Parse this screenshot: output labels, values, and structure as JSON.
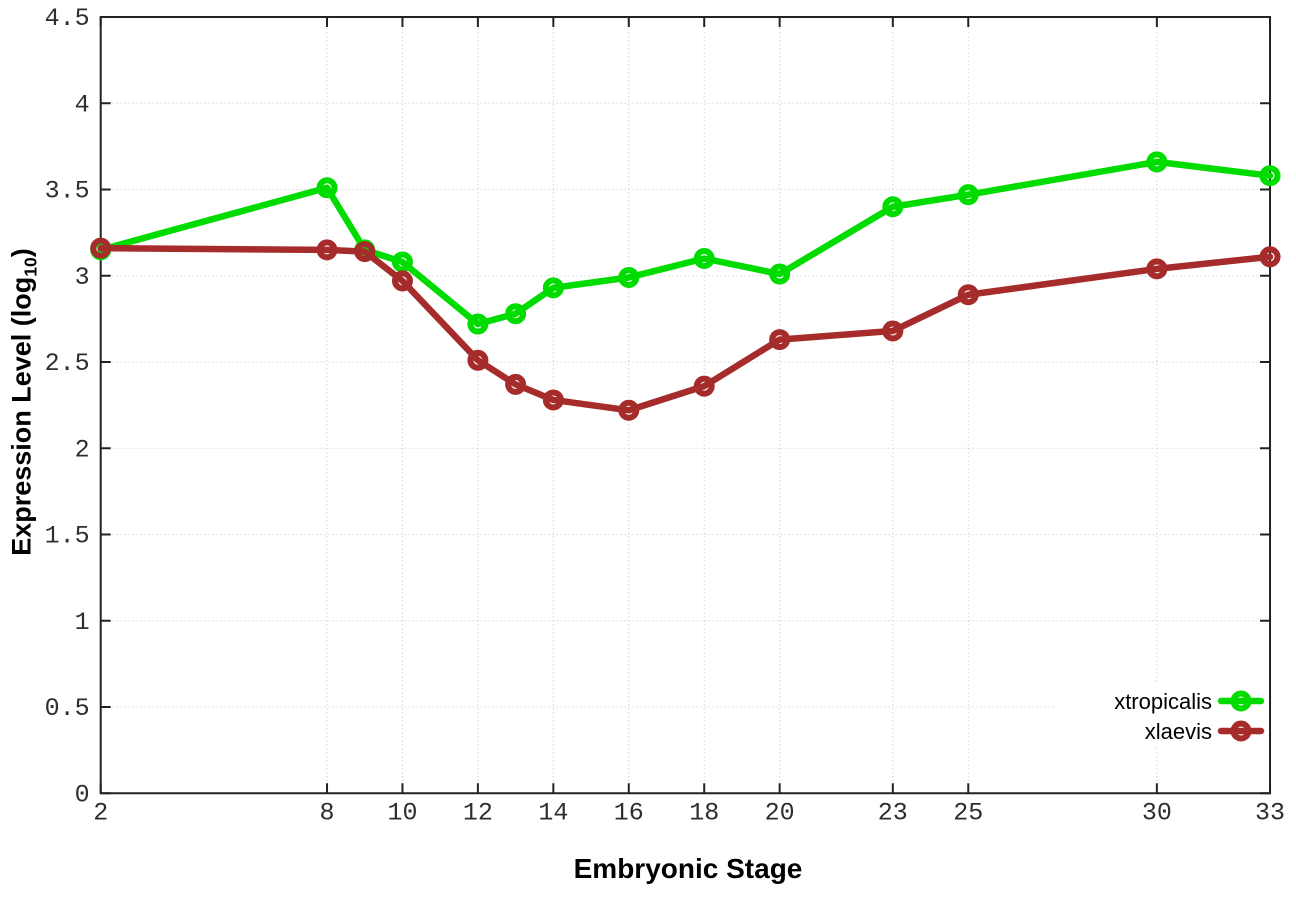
{
  "page": {
    "background": "#ffffff"
  },
  "labels": {
    "xlabel": "Embryonic Stage",
    "ylabel_pre": "Expression Level (log",
    "ylabel_sub": "10",
    "ylabel_post": ")"
  },
  "chart_data": {
    "type": "line",
    "title": "",
    "xlabel": "Embryonic Stage",
    "ylabel": "Expression Level (log10)",
    "xlim": [
      2,
      33
    ],
    "ylim": [
      0,
      4.5
    ],
    "x_ticks": [
      2,
      8,
      10,
      12,
      14,
      16,
      18,
      20,
      23,
      25,
      30,
      33
    ],
    "y_ticks": [
      0,
      0.5,
      1,
      1.5,
      2,
      2.5,
      3,
      3.5,
      4,
      4.5
    ],
    "grid": true,
    "legend_position": "bottom-right",
    "series": [
      {
        "name": "xtropicalis",
        "color": "#00dc00",
        "marker": "open-circle",
        "x": [
          2,
          8,
          9,
          10,
          12,
          13,
          14,
          16,
          18,
          20,
          23,
          25,
          30,
          33
        ],
        "y": [
          3.15,
          3.51,
          3.15,
          3.08,
          2.72,
          2.78,
          2.93,
          2.99,
          3.1,
          3.01,
          3.4,
          3.47,
          3.66,
          3.58
        ]
      },
      {
        "name": "xlaevis",
        "color": "#a62b2b",
        "marker": "open-circle",
        "x": [
          2,
          8,
          9,
          10,
          12,
          13,
          14,
          16,
          18,
          20,
          23,
          25,
          30,
          33
        ],
        "y": [
          3.16,
          3.15,
          3.14,
          2.97,
          2.51,
          2.37,
          2.28,
          2.22,
          2.36,
          2.63,
          2.68,
          2.89,
          3.04,
          3.11
        ]
      }
    ],
    "style": {
      "grid_color": "#c3c3c3",
      "axis_color": "#222222",
      "tick_label_color": "#2e2e2e",
      "background": "#ffffff"
    }
  }
}
